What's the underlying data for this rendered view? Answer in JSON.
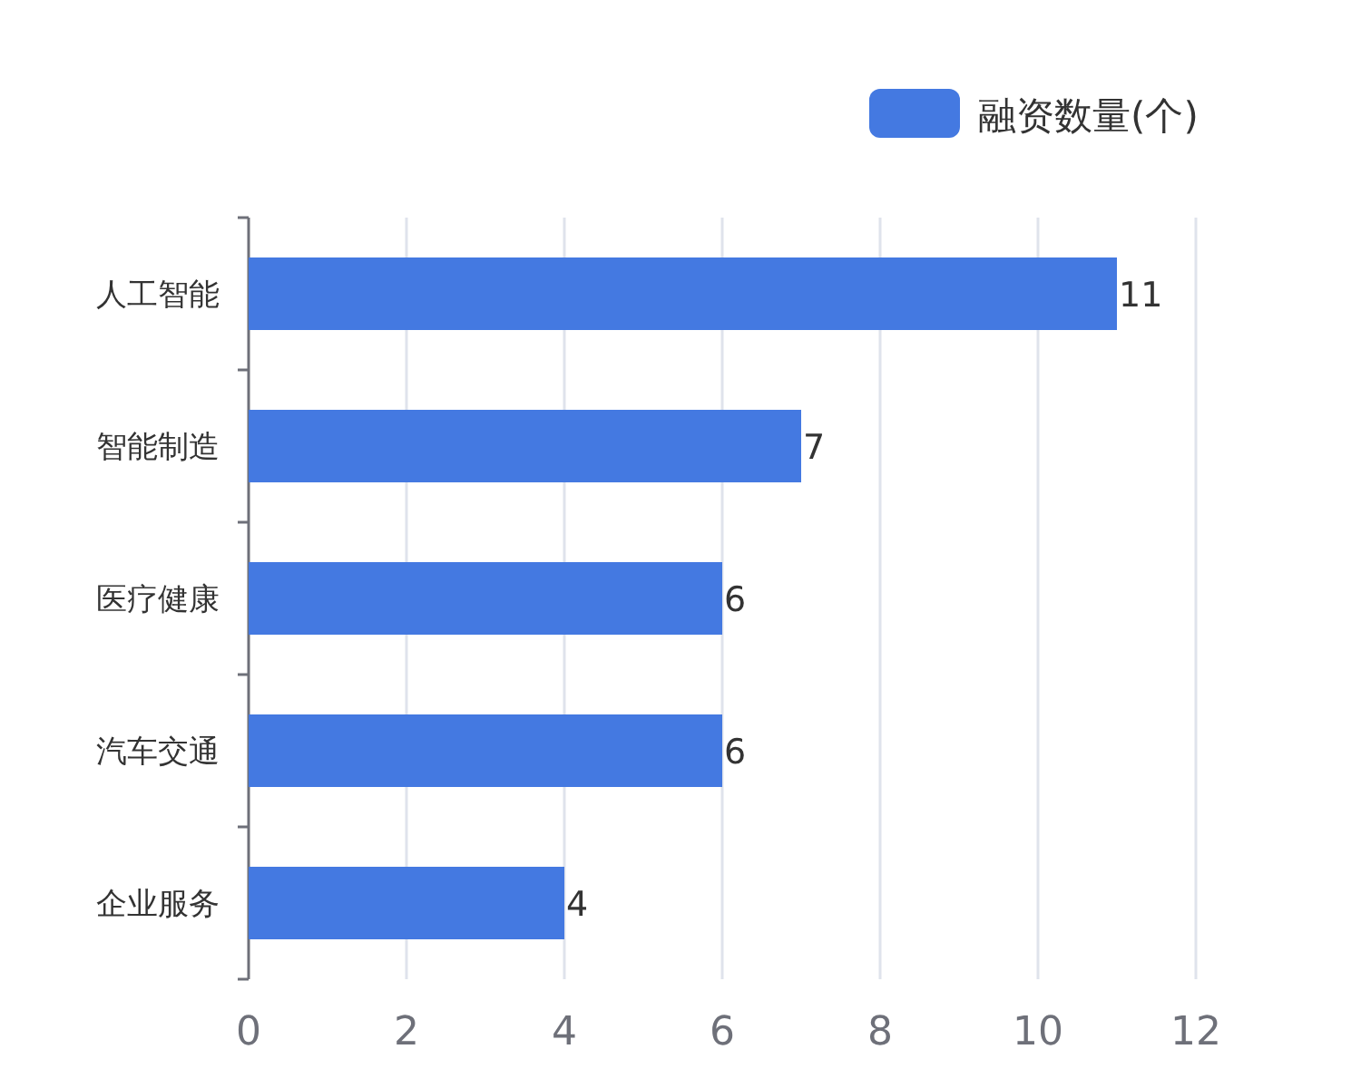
{
  "chart_data": {
    "type": "bar",
    "orientation": "horizontal",
    "categories": [
      "人工智能",
      "智能制造",
      "医疗健康",
      "汽车交通",
      "企业服务"
    ],
    "series": [
      {
        "name": "融资数量(个)",
        "color": "#4479e1",
        "values": [
          11,
          7,
          6,
          6,
          4
        ]
      }
    ],
    "xlim": [
      0,
      12
    ],
    "xticks": [
      0,
      2,
      4,
      6,
      8,
      10,
      12
    ],
    "grid": "x",
    "legend": "top right",
    "data_labels": true
  }
}
